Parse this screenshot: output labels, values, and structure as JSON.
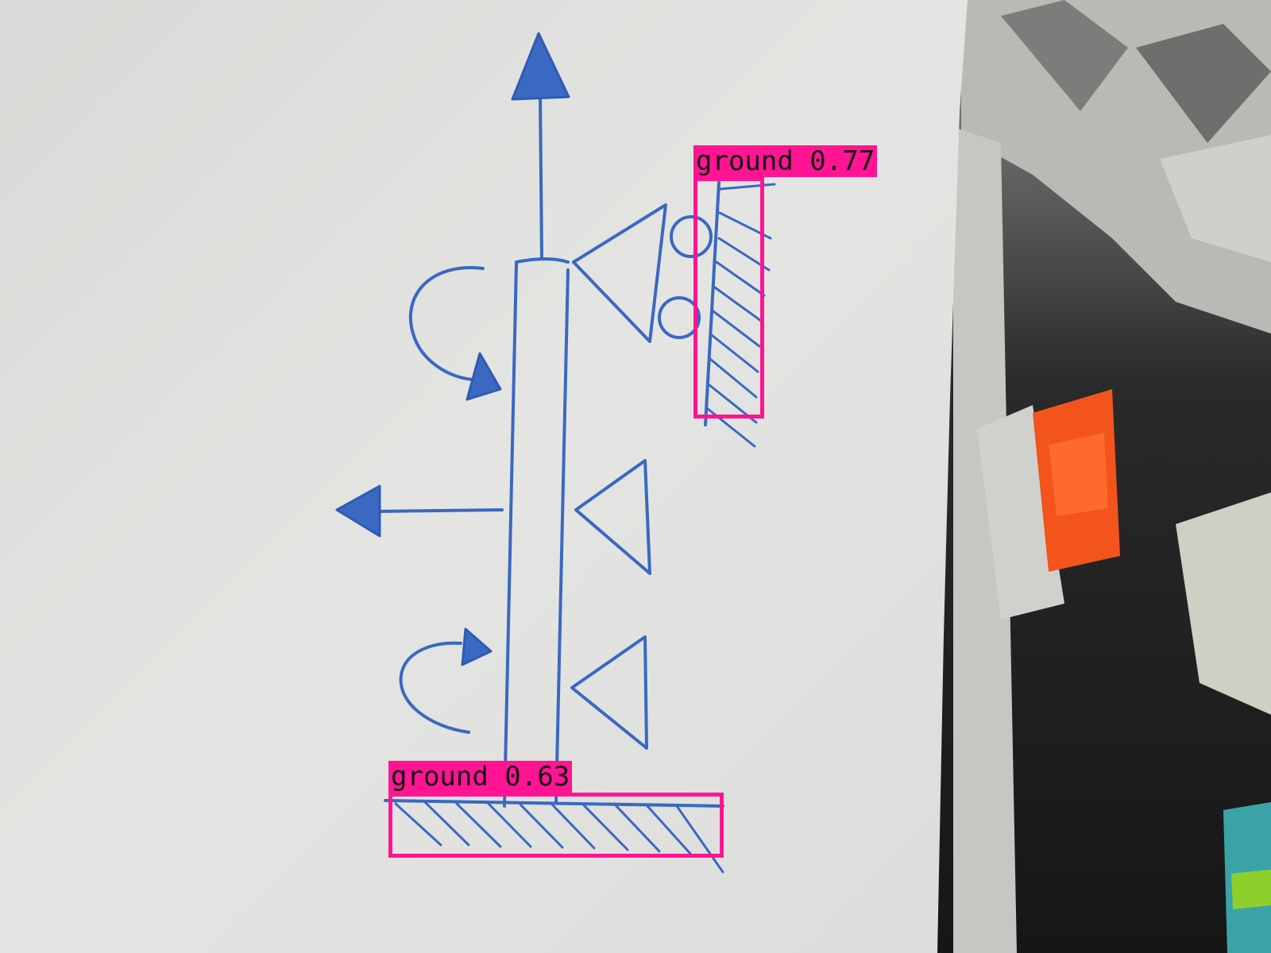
{
  "image": {
    "description_icon": "hand-drawn-diagram-photo",
    "paper_color": "#e2e3e0",
    "ink_color": "#3a68c2"
  },
  "detections": [
    {
      "class_name": "ground",
      "score": "0.77",
      "label": "ground 0.77",
      "color": "#ff1493"
    },
    {
      "class_name": "ground",
      "score": "0.63",
      "label": "ground 0.63",
      "color": "#ff1493"
    }
  ]
}
